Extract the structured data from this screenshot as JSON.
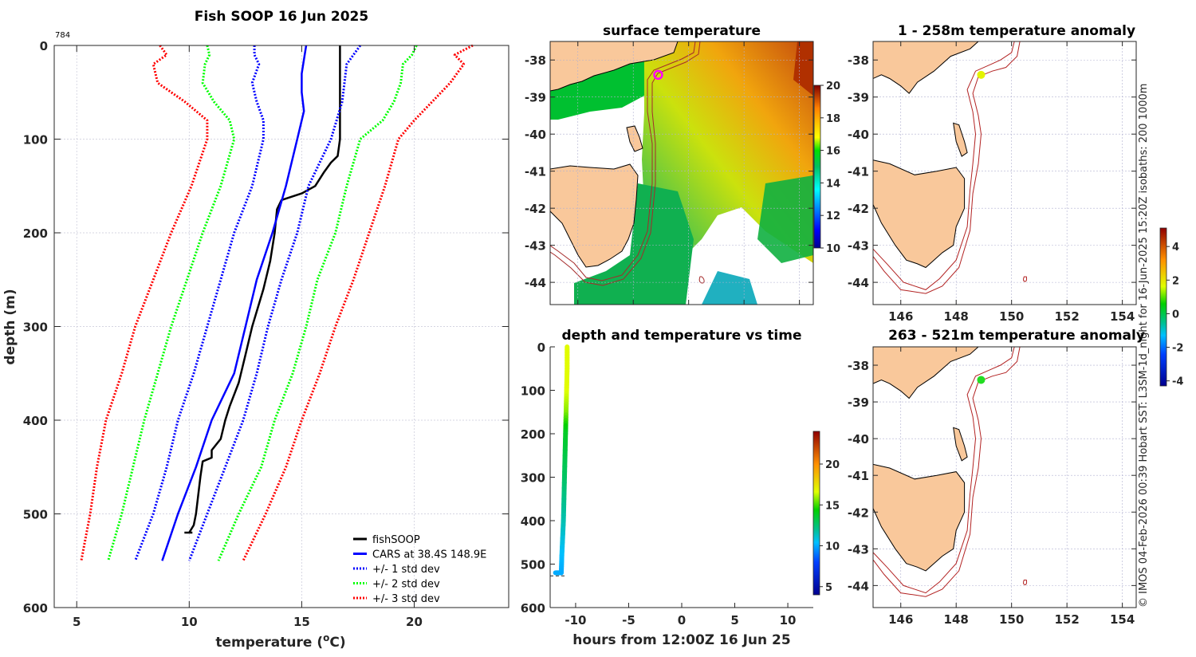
{
  "figure_title": "Fish SOOP 16 Jun 2025",
  "credit_text": "© IMOS 04-Feb-2026 00:39 Hobart SST: L3SM-1d_night for 16-Jun-2025 15:20Z isobaths: 200  1000m",
  "chart_data": [
    {
      "id": "profile",
      "type": "line",
      "title": "Fish SOOP 16 Jun 2025",
      "annotation": "784",
      "xlabel": "temperature (oC)",
      "xlabel_main": "temperature (",
      "xlabel_sup": "o",
      "xlabel_tail": "C)",
      "ylabel": "depth (m)",
      "xlim": [
        4,
        24.2
      ],
      "ylim": [
        0,
        600
      ],
      "y_reversed": true,
      "xticks": [
        5,
        10,
        15,
        20
      ],
      "yticks": [
        0,
        100,
        200,
        300,
        400,
        500,
        600
      ],
      "grid": true,
      "legend_position": "bottom-right",
      "series": [
        {
          "name": "fishSOOP",
          "style": "solid",
          "color": "#000000",
          "depth": [
            0,
            100,
            118,
            125,
            135,
            150,
            158,
            165,
            175,
            200,
            230,
            260,
            300,
            330,
            360,
            385,
            400,
            420,
            432,
            440,
            444,
            460,
            480,
            500,
            512,
            520
          ],
          "temp": [
            16.7,
            16.7,
            16.6,
            16.3,
            16.0,
            15.6,
            15.0,
            14.1,
            13.9,
            13.8,
            13.6,
            13.3,
            12.8,
            12.5,
            12.2,
            11.8,
            11.6,
            11.4,
            11.0,
            11.0,
            10.6,
            10.5,
            10.4,
            10.3,
            10.2,
            10.0
          ]
        },
        {
          "name": "CARS at 38.4S 148.9E",
          "style": "solid",
          "color": "#0000ff",
          "depth": [
            0,
            30,
            50,
            70,
            100,
            150,
            200,
            250,
            300,
            350,
            400,
            450,
            500,
            550
          ],
          "temp": [
            15.2,
            15.0,
            15.0,
            15.1,
            14.8,
            14.3,
            13.7,
            13.0,
            12.5,
            12.0,
            11.0,
            10.3,
            9.5,
            8.8
          ]
        },
        {
          "name": "+/- 1 std dev",
          "style": "dotted",
          "color": "#0000ff",
          "depth": [
            0,
            10,
            20,
            40,
            60,
            80,
            100,
            150,
            200,
            250,
            300,
            350,
            400,
            450,
            500,
            550
          ],
          "temp": [
            12.9,
            12.9,
            13.1,
            12.8,
            13.0,
            13.3,
            13.3,
            12.8,
            12.0,
            11.4,
            10.8,
            10.2,
            9.5,
            9.0,
            8.4,
            7.6
          ]
        },
        {
          "name": "+/- 1 std dev upper",
          "style": "dotted",
          "color": "#0000ff",
          "legend": false,
          "depth": [
            0,
            20,
            60,
            100,
            150,
            200,
            250,
            300,
            350,
            400,
            450,
            500,
            550
          ],
          "temp": [
            17.6,
            17.0,
            16.8,
            16.3,
            15.3,
            14.8,
            14.1,
            13.5,
            13.0,
            12.4,
            11.6,
            10.8,
            10.0
          ]
        },
        {
          "name": "+/- 2 std dev",
          "style": "dotted",
          "color": "#00ff00",
          "depth": [
            0,
            10,
            20,
            40,
            60,
            80,
            100,
            150,
            200,
            250,
            300,
            350,
            400,
            450,
            500,
            550
          ],
          "temp": [
            10.8,
            10.9,
            10.7,
            10.6,
            11.1,
            11.8,
            12.0,
            11.4,
            10.6,
            9.9,
            9.2,
            8.6,
            8.0,
            7.5,
            7.0,
            6.4
          ]
        },
        {
          "name": "+/- 2 std dev upper",
          "style": "dotted",
          "color": "#00ff00",
          "legend": false,
          "depth": [
            0,
            10,
            20,
            40,
            60,
            80,
            100,
            150,
            200,
            250,
            300,
            350,
            400,
            450,
            500,
            550
          ],
          "temp": [
            20.1,
            19.9,
            19.5,
            19.4,
            19.1,
            18.6,
            17.6,
            17.0,
            16.5,
            15.7,
            15.2,
            14.6,
            13.8,
            13.2,
            12.2,
            11.3
          ]
        },
        {
          "name": "+/- 3 std dev",
          "style": "dotted",
          "color": "#ff0000",
          "depth": [
            0,
            10,
            20,
            40,
            60,
            80,
            100,
            150,
            200,
            250,
            300,
            350,
            400,
            450,
            500,
            550
          ],
          "temp": [
            8.7,
            9.0,
            8.4,
            8.6,
            9.8,
            10.8,
            10.8,
            10.1,
            9.2,
            8.4,
            7.6,
            7.0,
            6.3,
            5.9,
            5.6,
            5.2
          ]
        },
        {
          "name": "+/- 3 std dev upper",
          "style": "dotted",
          "color": "#ff0000",
          "legend": false,
          "depth": [
            0,
            10,
            20,
            40,
            60,
            80,
            100,
            150,
            200,
            250,
            300,
            350,
            400,
            450,
            500,
            550
          ],
          "temp": [
            22.6,
            21.8,
            22.2,
            21.6,
            20.8,
            20.0,
            19.3,
            18.7,
            18.0,
            17.3,
            16.5,
            15.8,
            15.0,
            14.3,
            13.4,
            12.4
          ]
        }
      ],
      "legend": [
        {
          "label": "fishSOOP",
          "color": "#000000",
          "style": "solid"
        },
        {
          "label": "CARS at 38.4S 148.9E",
          "color": "#0000ff",
          "style": "solid"
        },
        {
          "label": "+/- 1 std dev",
          "color": "#0000ff",
          "style": "dotted"
        },
        {
          "label": "+/- 2 std dev",
          "color": "#00ff00",
          "style": "dotted"
        },
        {
          "label": "+/- 3 std dev",
          "color": "#ff0000",
          "style": "dotted"
        }
      ]
    },
    {
      "id": "sst_map",
      "type": "heatmap",
      "title": "surface temperature",
      "xlim": [
        145,
        154.5
      ],
      "ylim": [
        -44.6,
        -37.5
      ],
      "xticks": [
        146,
        148,
        150,
        152,
        154
      ],
      "yticks": [
        -38,
        -39,
        -40,
        -41,
        -42,
        -43,
        -44
      ],
      "colorbar": {
        "min": 10,
        "max": 20,
        "ticks": [
          10,
          12,
          14,
          16,
          18,
          20
        ]
      },
      "marker": {
        "lon": 148.9,
        "lat": -38.4,
        "color": "#ff00ff",
        "shape": "circle"
      }
    },
    {
      "id": "depth_time",
      "type": "scatter",
      "title": "depth and temperature vs time",
      "xlabel": "hours from 12:00Z 16 Jun 25",
      "xlim": [
        -12.4,
        12.4
      ],
      "ylim": [
        0,
        600
      ],
      "y_reversed": true,
      "xticks": [
        -10,
        -5,
        0,
        5,
        10
      ],
      "yticks": [
        0,
        100,
        200,
        300,
        400,
        500,
        600
      ],
      "colorbar": {
        "min": 4,
        "max": 24,
        "ticks": [
          5,
          10,
          15,
          20
        ]
      },
      "track": {
        "hours": [
          -10.8,
          -10.8,
          -10.85,
          -10.9,
          -10.95,
          -11.05,
          -11.15,
          -11.3,
          -11.35,
          -11.9
        ],
        "depth": [
          0,
          50,
          100,
          150,
          200,
          300,
          400,
          480,
          520,
          520
        ],
        "temp": [
          16.7,
          16.7,
          16.7,
          15.8,
          13.8,
          12.8,
          11.6,
          10.4,
          10.0,
          10.0
        ]
      }
    },
    {
      "id": "anomaly_shallow",
      "type": "scatter",
      "title": "1 - 258m temperature anomaly",
      "xlim": [
        145,
        154.5
      ],
      "ylim": [
        -44.6,
        -37.5
      ],
      "xticks": [
        146,
        148,
        150,
        152,
        154
      ],
      "yticks": [
        -38,
        -39,
        -40,
        -41,
        -42,
        -43,
        -44
      ],
      "point": {
        "lon": 148.9,
        "lat": -38.4,
        "anomaly": 1.8
      },
      "colorbar": {
        "min": -4.3,
        "max": 5.1,
        "ticks": [
          -4,
          -2,
          0,
          2,
          4
        ]
      }
    },
    {
      "id": "anomaly_deep",
      "type": "scatter",
      "title": "263 - 521m temperature anomaly",
      "xlim": [
        145,
        154.5
      ],
      "ylim": [
        -44.6,
        -37.5
      ],
      "xticks": [
        146,
        148,
        150,
        152,
        154
      ],
      "yticks": [
        -38,
        -39,
        -40,
        -41,
        -42,
        -43,
        -44
      ],
      "point": {
        "lon": 148.9,
        "lat": -38.4,
        "anomaly": 0.6
      }
    }
  ]
}
